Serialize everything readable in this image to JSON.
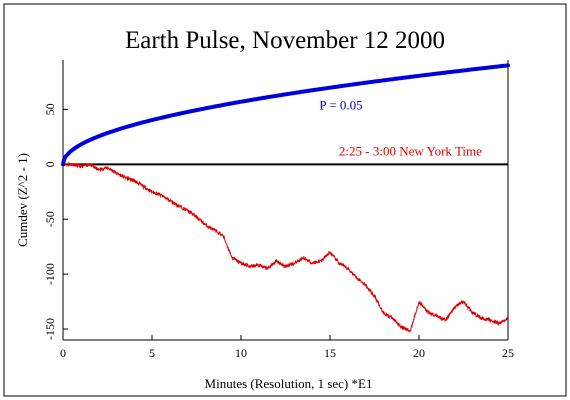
{
  "chart_data": {
    "type": "line",
    "title": "Earth Pulse, November 12 2000",
    "xlabel": "Minutes (Resolution, 1 sec)   *E1",
    "ylabel": "Cumdev (Z^2 - 1)",
    "xlim": [
      0,
      25
    ],
    "ylim": [
      -160,
      95
    ],
    "xticks": [
      0,
      5,
      10,
      15,
      20,
      25
    ],
    "yticks": [
      -150,
      -100,
      -50,
      0,
      50
    ],
    "grid": false,
    "colors": {
      "expectation": "#0000dd",
      "cumdev": "#dd0000",
      "baseline": "#000000"
    },
    "annotations": [
      {
        "text": "P = 0.05",
        "x": 14.4,
        "y": 50,
        "color": "#0000dd"
      },
      {
        "text": "2:25 - 3:00 New York Time",
        "x": 15.5,
        "y": 8,
        "color": "#dd0000"
      }
    ],
    "series": [
      {
        "kind": "expectation",
        "function": "1.645*sqrt(2*x*60)",
        "x_range": [
          0,
          25
        ]
      },
      {
        "kind": "cumdev",
        "x": [
          0,
          0.5,
          1,
          1.5,
          2,
          2.5,
          3,
          3.5,
          4,
          4.5,
          5,
          5.5,
          6,
          6.5,
          7,
          7.5,
          8,
          8.5,
          9,
          9.5,
          10,
          10.5,
          11,
          11.5,
          12,
          12.5,
          13,
          13.5,
          14,
          14.5,
          15,
          15.5,
          16,
          16.5,
          17,
          17.5,
          18,
          18.5,
          19,
          19.5,
          20,
          20.5,
          21,
          21.5,
          22,
          22.5,
          23,
          23.5,
          24,
          24.5,
          25
        ],
        "y": [
          0,
          0,
          -2,
          0,
          -5,
          -3,
          -8,
          -12,
          -15,
          -20,
          -25,
          -28,
          -33,
          -38,
          -42,
          -48,
          -55,
          -60,
          -65,
          -85,
          -90,
          -93,
          -92,
          -95,
          -88,
          -93,
          -90,
          -85,
          -90,
          -88,
          -80,
          -90,
          -95,
          -103,
          -110,
          -120,
          -135,
          -140,
          -148,
          -152,
          -125,
          -135,
          -138,
          -142,
          -130,
          -125,
          -135,
          -140,
          -142,
          -145,
          -140
        ]
      }
    ]
  }
}
